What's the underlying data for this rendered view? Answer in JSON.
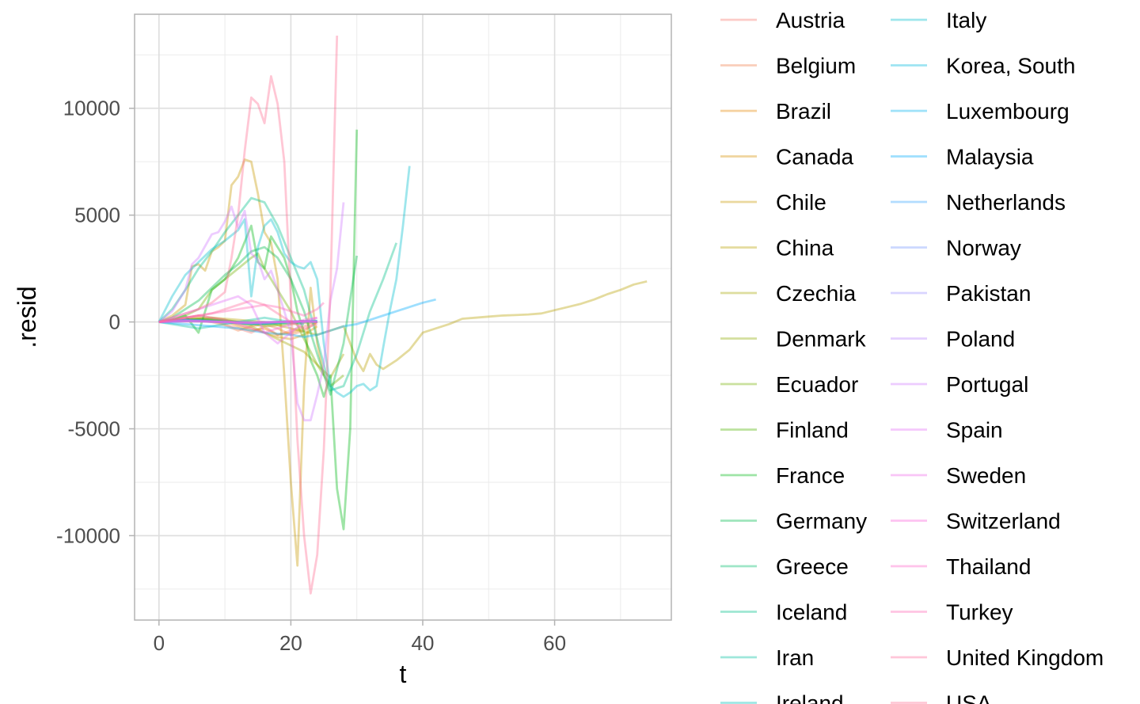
{
  "chart_data": {
    "type": "line",
    "title": "",
    "xlabel": "t",
    "ylabel": ".resid",
    "xlim": [
      -3.7,
      77.7
    ],
    "ylim": [
      -13950,
      14400
    ],
    "x_ticks": [
      0,
      20,
      40,
      60
    ],
    "y_ticks": [
      -10000,
      -5000,
      0,
      5000,
      10000
    ],
    "x_tick_labels": [
      "0",
      "20",
      "40",
      "60"
    ],
    "y_tick_labels": [
      "-10000",
      "-5000",
      "0",
      "5000",
      "10000"
    ],
    "grid": true,
    "legend_position": "right",
    "series": [
      {
        "name": "Austria",
        "color": "#F8766D",
        "x": [
          0,
          2,
          4,
          6,
          8,
          10,
          12,
          14,
          16,
          18,
          20,
          22,
          24
        ],
        "y": [
          0,
          80,
          150,
          120,
          60,
          -100,
          -300,
          -500,
          -200,
          -600,
          -400,
          -200,
          0
        ]
      },
      {
        "name": "Belgium",
        "color": "#EF7F49",
        "x": [
          0,
          2,
          4,
          6,
          8,
          10,
          12,
          14,
          16,
          18,
          20,
          22,
          24
        ],
        "y": [
          0,
          50,
          100,
          60,
          0,
          -150,
          -400,
          -200,
          -100,
          -300,
          -600,
          -400,
          0
        ]
      },
      {
        "name": "Brazil",
        "color": "#E58700",
        "x": [
          0,
          2,
          4,
          6,
          8,
          10,
          12,
          14,
          16,
          18,
          20,
          22
        ],
        "y": [
          0,
          60,
          100,
          150,
          100,
          50,
          -200,
          -400,
          -300,
          -600,
          -500,
          -300
        ]
      },
      {
        "name": "Canada",
        "color": "#D89000",
        "x": [
          0,
          2,
          4,
          6,
          8,
          10,
          12,
          14,
          16,
          18,
          20,
          22,
          24
        ],
        "y": [
          0,
          100,
          200,
          300,
          200,
          100,
          -100,
          -300,
          -500,
          -700,
          -800,
          -600,
          -200
        ]
      },
      {
        "name": "Chile",
        "color": "#C99800",
        "x": [
          0,
          2,
          4,
          5,
          6,
          7,
          8,
          9,
          10,
          11,
          12,
          13,
          14,
          15,
          16,
          17,
          18,
          19,
          20,
          21,
          22,
          23,
          24,
          25
        ],
        "y": [
          0,
          300,
          800,
          2600,
          2700,
          2400,
          3300,
          3500,
          3800,
          6400,
          6800,
          7600,
          7500,
          6000,
          4200,
          3700,
          2000,
          -2500,
          -7500,
          -11400,
          -3000,
          1600,
          -1000,
          -2500
        ]
      },
      {
        "name": "China",
        "color": "#B9A000",
        "x": [
          0,
          4,
          8,
          12,
          16,
          20,
          24,
          28,
          30,
          31,
          32,
          33,
          34,
          36,
          38,
          39,
          40,
          42,
          44,
          46,
          48,
          50,
          52,
          54,
          56,
          58,
          60,
          62,
          64,
          66,
          68,
          70,
          72,
          74
        ],
        "y": [
          0,
          100,
          200,
          100,
          0,
          -300,
          -600,
          -200,
          -1800,
          -2300,
          -1500,
          -2000,
          -2200,
          -1800,
          -1300,
          -900,
          -500,
          -300,
          -100,
          150,
          200,
          250,
          300,
          320,
          350,
          400,
          550,
          700,
          850,
          1050,
          1300,
          1500,
          1750,
          1900
        ]
      },
      {
        "name": "Czechia",
        "color": "#A6A600",
        "x": [
          0,
          2,
          4,
          6,
          8,
          10,
          12,
          14,
          16,
          18,
          20,
          22,
          24,
          26,
          28
        ],
        "y": [
          0,
          60,
          120,
          200,
          150,
          100,
          0,
          -200,
          -500,
          -800,
          -1100,
          -1400,
          -2000,
          -2600,
          -1500
        ]
      },
      {
        "name": "Denmark",
        "color": "#8FAA00",
        "x": [
          0,
          2,
          4,
          6,
          8,
          10,
          12,
          14,
          16,
          18,
          20,
          22,
          24
        ],
        "y": [
          0,
          40,
          80,
          120,
          100,
          50,
          0,
          -100,
          -200,
          -150,
          -100,
          -50,
          0
        ]
      },
      {
        "name": "Ecuador",
        "color": "#73AF00",
        "x": [
          0,
          2,
          4,
          6,
          8,
          10,
          12,
          14,
          15,
          16,
          18,
          20,
          22,
          24,
          26,
          28
        ],
        "y": [
          0,
          100,
          300,
          600,
          1500,
          2000,
          2500,
          3000,
          3200,
          2500,
          1500,
          500,
          -800,
          -2000,
          -3000,
          -2500
        ]
      },
      {
        "name": "Finland",
        "color": "#4EB400",
        "x": [
          0,
          2,
          4,
          6,
          8,
          10,
          12,
          14,
          16,
          18,
          20,
          22
        ],
        "y": [
          0,
          50,
          100,
          80,
          50,
          0,
          -50,
          -100,
          -80,
          -50,
          0,
          50
        ]
      },
      {
        "name": "France",
        "color": "#00B814",
        "x": [
          0,
          2,
          4,
          6,
          8,
          10,
          12,
          14,
          15,
          16,
          17,
          18,
          19,
          20,
          21,
          22,
          23,
          24,
          25,
          26,
          27,
          28,
          29,
          30
        ],
        "y": [
          0,
          100,
          300,
          -500,
          1500,
          2000,
          3000,
          4500,
          2800,
          2500,
          4000,
          3500,
          3000,
          2000,
          500,
          -500,
          -1800,
          -2500,
          -3500,
          -2500,
          -7800,
          -9700,
          -5000,
          9000
        ]
      },
      {
        "name": "Germany",
        "color": "#00BB4C",
        "x": [
          0,
          2,
          4,
          6,
          8,
          10,
          12,
          14,
          16,
          18,
          20,
          22,
          24,
          26,
          28,
          30
        ],
        "y": [
          0,
          200,
          600,
          1000,
          1600,
          2200,
          2700,
          3300,
          3500,
          3000,
          2000,
          500,
          -1500,
          -3400,
          -1000,
          3100
        ]
      },
      {
        "name": "Greece",
        "color": "#00BE6C",
        "x": [
          0,
          2,
          4,
          6,
          8,
          10,
          12,
          14,
          16,
          18,
          20,
          22,
          24
        ],
        "y": [
          0,
          60,
          100,
          120,
          100,
          60,
          0,
          -60,
          -100,
          -80,
          -40,
          0,
          20
        ]
      },
      {
        "name": "Iceland",
        "color": "#00C088",
        "x": [
          0,
          2,
          4,
          6,
          8,
          10,
          12,
          14,
          16,
          18,
          20,
          22,
          24,
          26,
          28,
          30,
          32,
          34,
          36
        ],
        "y": [
          0,
          600,
          1500,
          2500,
          3300,
          4200,
          5000,
          5800,
          5600,
          4500,
          3000,
          1500,
          -800,
          -3200,
          -3000,
          -1500,
          500,
          2000,
          3700
        ]
      },
      {
        "name": "Iran",
        "color": "#00C0A1",
        "x": [
          0,
          2,
          4,
          6,
          8,
          10,
          12,
          14,
          16,
          18,
          20,
          22
        ],
        "y": [
          0,
          -100,
          -200,
          -300,
          -200,
          -100,
          0,
          100,
          200,
          100,
          0,
          -100
        ]
      },
      {
        "name": "Ireland",
        "color": "#00BFB8",
        "x": [
          0,
          2,
          4,
          6,
          8,
          10,
          12,
          14,
          16,
          18,
          20,
          22,
          24
        ],
        "y": [
          0,
          40,
          80,
          60,
          20,
          -20,
          -60,
          -100,
          -80,
          -40,
          0,
          40,
          60
        ]
      },
      {
        "name": "Italy",
        "color": "#00BDCD",
        "x": [
          0,
          2,
          4,
          6,
          8,
          10,
          12,
          13,
          14,
          15,
          16,
          17,
          18,
          19,
          20,
          21,
          22,
          23,
          24,
          25,
          26,
          27,
          28,
          29,
          30,
          31,
          32,
          33,
          34,
          35,
          36,
          37,
          38
        ],
        "y": [
          0,
          1200,
          2200,
          2800,
          3400,
          3800,
          4300,
          4800,
          1200,
          3500,
          4500,
          4800,
          4200,
          3200,
          2800,
          2600,
          2500,
          2800,
          2000,
          -1000,
          -3000,
          -3300,
          -3500,
          -3300,
          -3000,
          -2900,
          -3200,
          -3000,
          -1200,
          500,
          2000,
          4500,
          7300
        ]
      },
      {
        "name": "Korea, South",
        "color": "#00B8E0",
        "x": [
          0,
          2,
          4,
          6,
          8,
          10,
          12,
          14,
          16,
          18,
          20,
          22,
          24
        ],
        "y": [
          0,
          30,
          60,
          40,
          20,
          0,
          -20,
          -40,
          -20,
          0,
          20,
          40,
          20
        ]
      },
      {
        "name": "Luxembourg",
        "color": "#00B2F0",
        "x": [
          0,
          2,
          4,
          6,
          8,
          10,
          12,
          14,
          16,
          18,
          20,
          22,
          24
        ],
        "y": [
          0,
          20,
          40,
          30,
          10,
          0,
          -10,
          -20,
          -10,
          0,
          10,
          20,
          10
        ]
      },
      {
        "name": "Malaysia",
        "color": "#00ABFD",
        "x": [
          0,
          4,
          8,
          12,
          16,
          20,
          22,
          24,
          26,
          28,
          30,
          32,
          34,
          36,
          38,
          40,
          42
        ],
        "y": [
          0,
          -100,
          -200,
          -300,
          -500,
          -600,
          -700,
          -600,
          -400,
          -200,
          -100,
          100,
          300,
          500,
          700,
          900,
          1050
        ]
      },
      {
        "name": "Netherlands",
        "color": "#35A2FF",
        "x": [
          0,
          2,
          4,
          6,
          8,
          10,
          12,
          14,
          16,
          18,
          20,
          22,
          24
        ],
        "y": [
          0,
          50,
          100,
          80,
          40,
          0,
          -40,
          -80,
          -60,
          -20,
          0,
          20,
          40
        ]
      },
      {
        "name": "Norway",
        "color": "#7798FF",
        "x": [
          0,
          2,
          4,
          6,
          8,
          10,
          12,
          14,
          16,
          18,
          20,
          22,
          24
        ],
        "y": [
          0,
          30,
          60,
          50,
          20,
          0,
          -30,
          -50,
          -30,
          0,
          20,
          30,
          10
        ]
      },
      {
        "name": "Pakistan",
        "color": "#9C8DFF",
        "x": [
          0,
          2,
          4,
          6,
          8,
          10,
          12,
          14,
          16,
          18,
          20,
          22
        ],
        "y": [
          0,
          40,
          80,
          60,
          30,
          0,
          -30,
          -60,
          -40,
          -10,
          10,
          20
        ]
      },
      {
        "name": "Poland",
        "color": "#B983FF",
        "x": [
          0,
          2,
          4,
          6,
          8,
          10,
          12,
          14,
          16,
          18,
          20,
          22,
          24
        ],
        "y": [
          0,
          20,
          40,
          30,
          10,
          -10,
          -30,
          -40,
          -20,
          0,
          10,
          20,
          10
        ]
      },
      {
        "name": "Portugal",
        "color": "#D078FF",
        "x": [
          0,
          2,
          4,
          5,
          6,
          8,
          9,
          10,
          11,
          12,
          13,
          14,
          15,
          16,
          17,
          18,
          19,
          20,
          21,
          22,
          23,
          24,
          25,
          26,
          27,
          28
        ],
        "y": [
          0,
          500,
          1500,
          2700,
          3000,
          4100,
          4200,
          4700,
          5400,
          4400,
          5200,
          3200,
          2900,
          2000,
          2400,
          1500,
          500,
          -500,
          -3800,
          -4600,
          -4600,
          -3400,
          -2000,
          1000,
          2500,
          5600
        ]
      },
      {
        "name": "Spain",
        "color": "#E26EF7",
        "x": [
          0,
          2,
          4,
          6,
          8,
          10,
          12,
          14,
          16,
          18,
          20,
          22,
          24
        ],
        "y": [
          0,
          200,
          400,
          600,
          800,
          1000,
          1200,
          800,
          -500,
          -1000,
          -500,
          0,
          200
        ]
      },
      {
        "name": "Sweden",
        "color": "#F066EA",
        "x": [
          0,
          2,
          4,
          6,
          8,
          10,
          12,
          14,
          16,
          18,
          20,
          22,
          24
        ],
        "y": [
          0,
          30,
          60,
          40,
          20,
          0,
          -20,
          -40,
          -20,
          0,
          20,
          30,
          10
        ]
      },
      {
        "name": "Switzerland",
        "color": "#FA62DB",
        "x": [
          0,
          2,
          4,
          6,
          8,
          10,
          12,
          14,
          16,
          18,
          20,
          22,
          24
        ],
        "y": [
          0,
          100,
          200,
          300,
          200,
          100,
          -100,
          -300,
          -500,
          -300,
          -100,
          100,
          200
        ]
      },
      {
        "name": "Thailand",
        "color": "#FF61C9",
        "x": [
          0,
          2,
          4,
          6,
          8,
          10,
          12,
          14,
          16,
          18,
          20,
          22,
          24
        ],
        "y": [
          0,
          20,
          30,
          20,
          10,
          0,
          -10,
          -20,
          -10,
          0,
          10,
          20,
          10
        ]
      },
      {
        "name": "Turkey",
        "color": "#FF64B3",
        "x": [
          0,
          2,
          4,
          6,
          8,
          10,
          12,
          14,
          16,
          18,
          20,
          22,
          24,
          25
        ],
        "y": [
          0,
          100,
          200,
          300,
          400,
          500,
          600,
          700,
          800,
          700,
          500,
          300,
          600,
          900
        ]
      },
      {
        "name": "United Kingdom",
        "color": "#FF6A9A",
        "x": [
          0,
          2,
          4,
          6,
          8,
          10,
          12,
          14,
          16,
          18,
          20,
          22,
          24
        ],
        "y": [
          0,
          100,
          200,
          300,
          400,
          600,
          800,
          1000,
          800,
          400,
          0,
          -300,
          -100
        ]
      },
      {
        "name": "USA",
        "color": "#FF6C91",
        "x": [
          0,
          2,
          4,
          6,
          8,
          10,
          11,
          12,
          13,
          14,
          15,
          16,
          17,
          18,
          19,
          20,
          21,
          22,
          23,
          24,
          25,
          26,
          27
        ],
        "y": [
          0,
          200,
          400,
          600,
          900,
          1400,
          3000,
          5000,
          8000,
          10500,
          10200,
          9300,
          11500,
          10200,
          7500,
          1000,
          -5500,
          -10000,
          -12700,
          -10900,
          -6000,
          1500,
          13400
        ]
      }
    ]
  }
}
